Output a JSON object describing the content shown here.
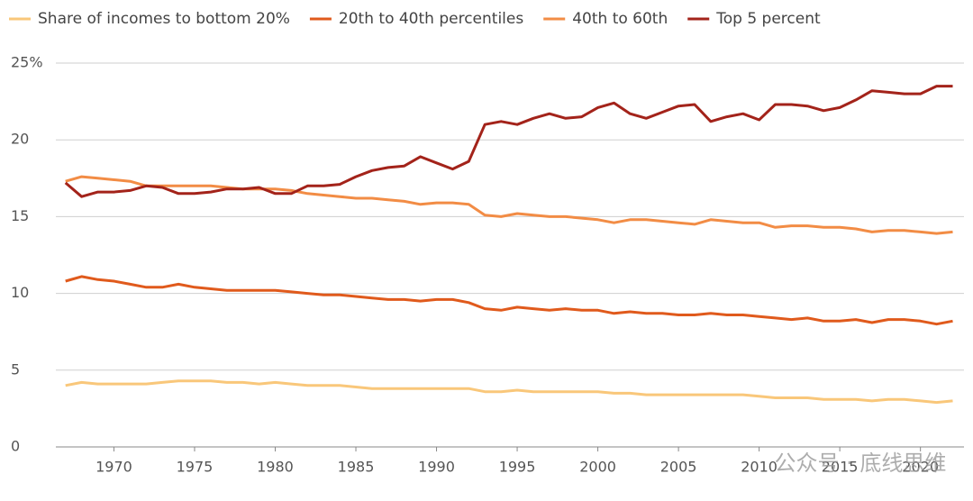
{
  "chart_data": {
    "type": "line",
    "x": [
      1967,
      1968,
      1969,
      1970,
      1971,
      1972,
      1973,
      1974,
      1975,
      1976,
      1977,
      1978,
      1979,
      1980,
      1981,
      1982,
      1983,
      1984,
      1985,
      1986,
      1987,
      1988,
      1989,
      1990,
      1991,
      1992,
      1993,
      1994,
      1995,
      1996,
      1997,
      1998,
      1999,
      2000,
      2001,
      2002,
      2003,
      2004,
      2005,
      2006,
      2007,
      2008,
      2009,
      2010,
      2011,
      2012,
      2013,
      2014,
      2015,
      2016,
      2017,
      2018,
      2019,
      2020,
      2021,
      2022
    ],
    "series": [
      {
        "name": "Share of incomes to bottom 20%",
        "color": "#f9c77a",
        "values": [
          4.0,
          4.2,
          4.1,
          4.1,
          4.1,
          4.1,
          4.2,
          4.3,
          4.3,
          4.3,
          4.2,
          4.2,
          4.1,
          4.2,
          4.1,
          4.0,
          4.0,
          4.0,
          3.9,
          3.8,
          3.8,
          3.8,
          3.8,
          3.8,
          3.8,
          3.8,
          3.6,
          3.6,
          3.7,
          3.6,
          3.6,
          3.6,
          3.6,
          3.6,
          3.5,
          3.5,
          3.4,
          3.4,
          3.4,
          3.4,
          3.4,
          3.4,
          3.4,
          3.3,
          3.2,
          3.2,
          3.2,
          3.1,
          3.1,
          3.1,
          3.0,
          3.1,
          3.1,
          3.0,
          2.9,
          3.0
        ]
      },
      {
        "name": "20th to 40th percentiles",
        "color": "#e05a1c",
        "values": [
          10.8,
          11.1,
          10.9,
          10.8,
          10.6,
          10.4,
          10.4,
          10.6,
          10.4,
          10.3,
          10.2,
          10.2,
          10.2,
          10.2,
          10.1,
          10.0,
          9.9,
          9.9,
          9.8,
          9.7,
          9.6,
          9.6,
          9.5,
          9.6,
          9.6,
          9.4,
          9.0,
          8.9,
          9.1,
          9.0,
          8.9,
          9.0,
          8.9,
          8.9,
          8.7,
          8.8,
          8.7,
          8.7,
          8.6,
          8.6,
          8.7,
          8.6,
          8.6,
          8.5,
          8.4,
          8.3,
          8.4,
          8.2,
          8.2,
          8.3,
          8.1,
          8.3,
          8.3,
          8.2,
          8.0,
          8.2
        ]
      },
      {
        "name": "40th to 60th",
        "color": "#f28c45",
        "values": [
          17.3,
          17.6,
          17.5,
          17.4,
          17.3,
          17.0,
          17.0,
          17.0,
          17.0,
          17.0,
          16.9,
          16.8,
          16.8,
          16.8,
          16.7,
          16.5,
          16.4,
          16.3,
          16.2,
          16.2,
          16.1,
          16.0,
          15.8,
          15.9,
          15.9,
          15.8,
          15.1,
          15.0,
          15.2,
          15.1,
          15.0,
          15.0,
          14.9,
          14.8,
          14.6,
          14.8,
          14.8,
          14.7,
          14.6,
          14.5,
          14.8,
          14.7,
          14.6,
          14.6,
          14.3,
          14.4,
          14.4,
          14.3,
          14.3,
          14.2,
          14.0,
          14.1,
          14.1,
          14.0,
          13.9,
          14.0
        ]
      },
      {
        "name": "Top 5 percent",
        "color": "#a3231a",
        "values": [
          17.2,
          16.3,
          16.6,
          16.6,
          16.7,
          17.0,
          16.9,
          16.5,
          16.5,
          16.6,
          16.8,
          16.8,
          16.9,
          16.5,
          16.5,
          17.0,
          17.0,
          17.1,
          17.6,
          18.0,
          18.2,
          18.3,
          18.9,
          18.5,
          18.1,
          18.6,
          21.0,
          21.2,
          21.0,
          21.4,
          21.7,
          21.4,
          21.5,
          22.1,
          22.4,
          21.7,
          21.4,
          21.8,
          22.2,
          22.3,
          21.2,
          21.5,
          21.7,
          21.3,
          22.3,
          22.3,
          22.2,
          21.9,
          22.1,
          22.6,
          23.2,
          23.1,
          23.0,
          23.0,
          23.5,
          23.5
        ]
      }
    ],
    "xlim": [
      1966.4,
      2022.7
    ],
    "xticks": [
      1970,
      1975,
      1980,
      1985,
      1990,
      1995,
      2000,
      2005,
      2010,
      2015,
      2020
    ],
    "ylim": [
      0,
      25
    ],
    "yticks": [
      0,
      5,
      10,
      15,
      20,
      {
        "value": 25,
        "label": "25%"
      }
    ],
    "grid": true,
    "legend": "top",
    "watermark": "公众号 · 底线思维"
  }
}
